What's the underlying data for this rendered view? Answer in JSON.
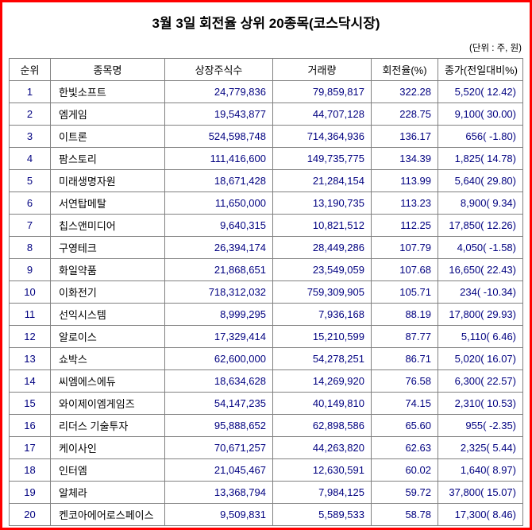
{
  "title": "3월 3일 회전율 상위 20종목(코스닥시장)",
  "unit_note": "(단위 : 주, 원)",
  "colors": {
    "frame_border": "#ff0000",
    "table_grid": "#808080",
    "number_text": "#000080",
    "body_text": "#000000"
  },
  "table": {
    "headers": [
      "순위",
      "종목명",
      "상장주식수",
      "거래량",
      "회전율(%)",
      "종가(전일대비%)"
    ],
    "rows": [
      [
        "1",
        "한빛소프트",
        "24,779,836",
        "79,859,817",
        "322.28",
        "5,520( 12.42)"
      ],
      [
        "2",
        "엠게임",
        "19,543,877",
        "44,707,128",
        "228.75",
        "9,100( 30.00)"
      ],
      [
        "3",
        "이트론",
        "524,598,748",
        "714,364,936",
        "136.17",
        "656( -1.80)"
      ],
      [
        "4",
        "팜스토리",
        "111,416,600",
        "149,735,775",
        "134.39",
        "1,825( 14.78)"
      ],
      [
        "5",
        "미래생명자원",
        "18,671,428",
        "21,284,154",
        "113.99",
        "5,640( 29.80)"
      ],
      [
        "6",
        "서연탑메탈",
        "11,650,000",
        "13,190,735",
        "113.23",
        "8,900( 9.34)"
      ],
      [
        "7",
        "칩스앤미디어",
        "9,640,315",
        "10,821,512",
        "112.25",
        "17,850( 12.26)"
      ],
      [
        "8",
        "구영테크",
        "26,394,174",
        "28,449,286",
        "107.79",
        "4,050( -1.58)"
      ],
      [
        "9",
        "화일약품",
        "21,868,651",
        "23,549,059",
        "107.68",
        "16,650( 22.43)"
      ],
      [
        "10",
        "이화전기",
        "718,312,032",
        "759,309,905",
        "105.71",
        "234( -10.34)"
      ],
      [
        "11",
        "선익시스템",
        "8,999,295",
        "7,936,168",
        "88.19",
        "17,800( 29.93)"
      ],
      [
        "12",
        "알로이스",
        "17,329,414",
        "15,210,599",
        "87.77",
        "5,110( 6.46)"
      ],
      [
        "13",
        "쇼박스",
        "62,600,000",
        "54,278,251",
        "86.71",
        "5,020( 16.07)"
      ],
      [
        "14",
        "씨엠에스에듀",
        "18,634,628",
        "14,269,920",
        "76.58",
        "6,300( 22.57)"
      ],
      [
        "15",
        "와이제이엠게임즈",
        "54,147,235",
        "40,149,810",
        "74.15",
        "2,310( 10.53)"
      ],
      [
        "16",
        "리더스 기술투자",
        "95,888,652",
        "62,898,586",
        "65.60",
        "955( -2.35)"
      ],
      [
        "17",
        "케이사인",
        "70,671,257",
        "44,263,820",
        "62.63",
        "2,325( 5.44)"
      ],
      [
        "18",
        "인터엠",
        "21,045,467",
        "12,630,591",
        "60.02",
        "1,640( 8.97)"
      ],
      [
        "19",
        "알체라",
        "13,368,794",
        "7,984,125",
        "59.72",
        "37,800( 15.07)"
      ],
      [
        "20",
        "켄코아에어로스페이스",
        "9,509,831",
        "5,589,533",
        "58.78",
        "17,300( 8.46)"
      ]
    ]
  }
}
